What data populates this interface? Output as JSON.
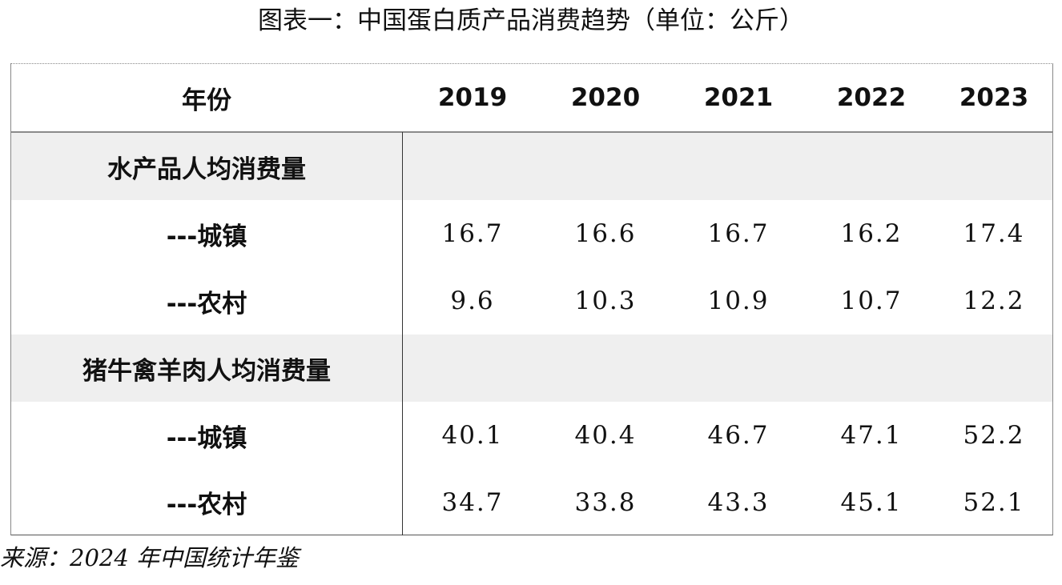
{
  "title": "图表一：中国蛋白质产品消费趋势（单位：公斤）",
  "source": "来源：2024 年中国统计年鉴",
  "chart_data": {
    "type": "table",
    "title": "图表一：中国蛋白质产品消费趋势（单位：公斤）",
    "unit": "公斤",
    "header_label": "年份",
    "years": [
      "2019",
      "2020",
      "2021",
      "2022",
      "2023"
    ],
    "groups": [
      {
        "label": "水产品人均消费量",
        "rows": [
          {
            "label": "---城镇",
            "values": [
              "16.7",
              "16.6",
              "16.7",
              "16.2",
              "17.4"
            ]
          },
          {
            "label": "---农村",
            "values": [
              "9.6",
              "10.3",
              "10.9",
              "10.7",
              "12.2"
            ]
          }
        ]
      },
      {
        "label": "猪牛禽羊肉人均消费量",
        "rows": [
          {
            "label": "---城镇",
            "values": [
              "40.1",
              "40.4",
              "46.7",
              "47.1",
              "52.2"
            ]
          },
          {
            "label": "---农村",
            "values": [
              "34.7",
              "33.8",
              "43.3",
              "45.1",
              "52.1"
            ]
          }
        ]
      }
    ]
  }
}
